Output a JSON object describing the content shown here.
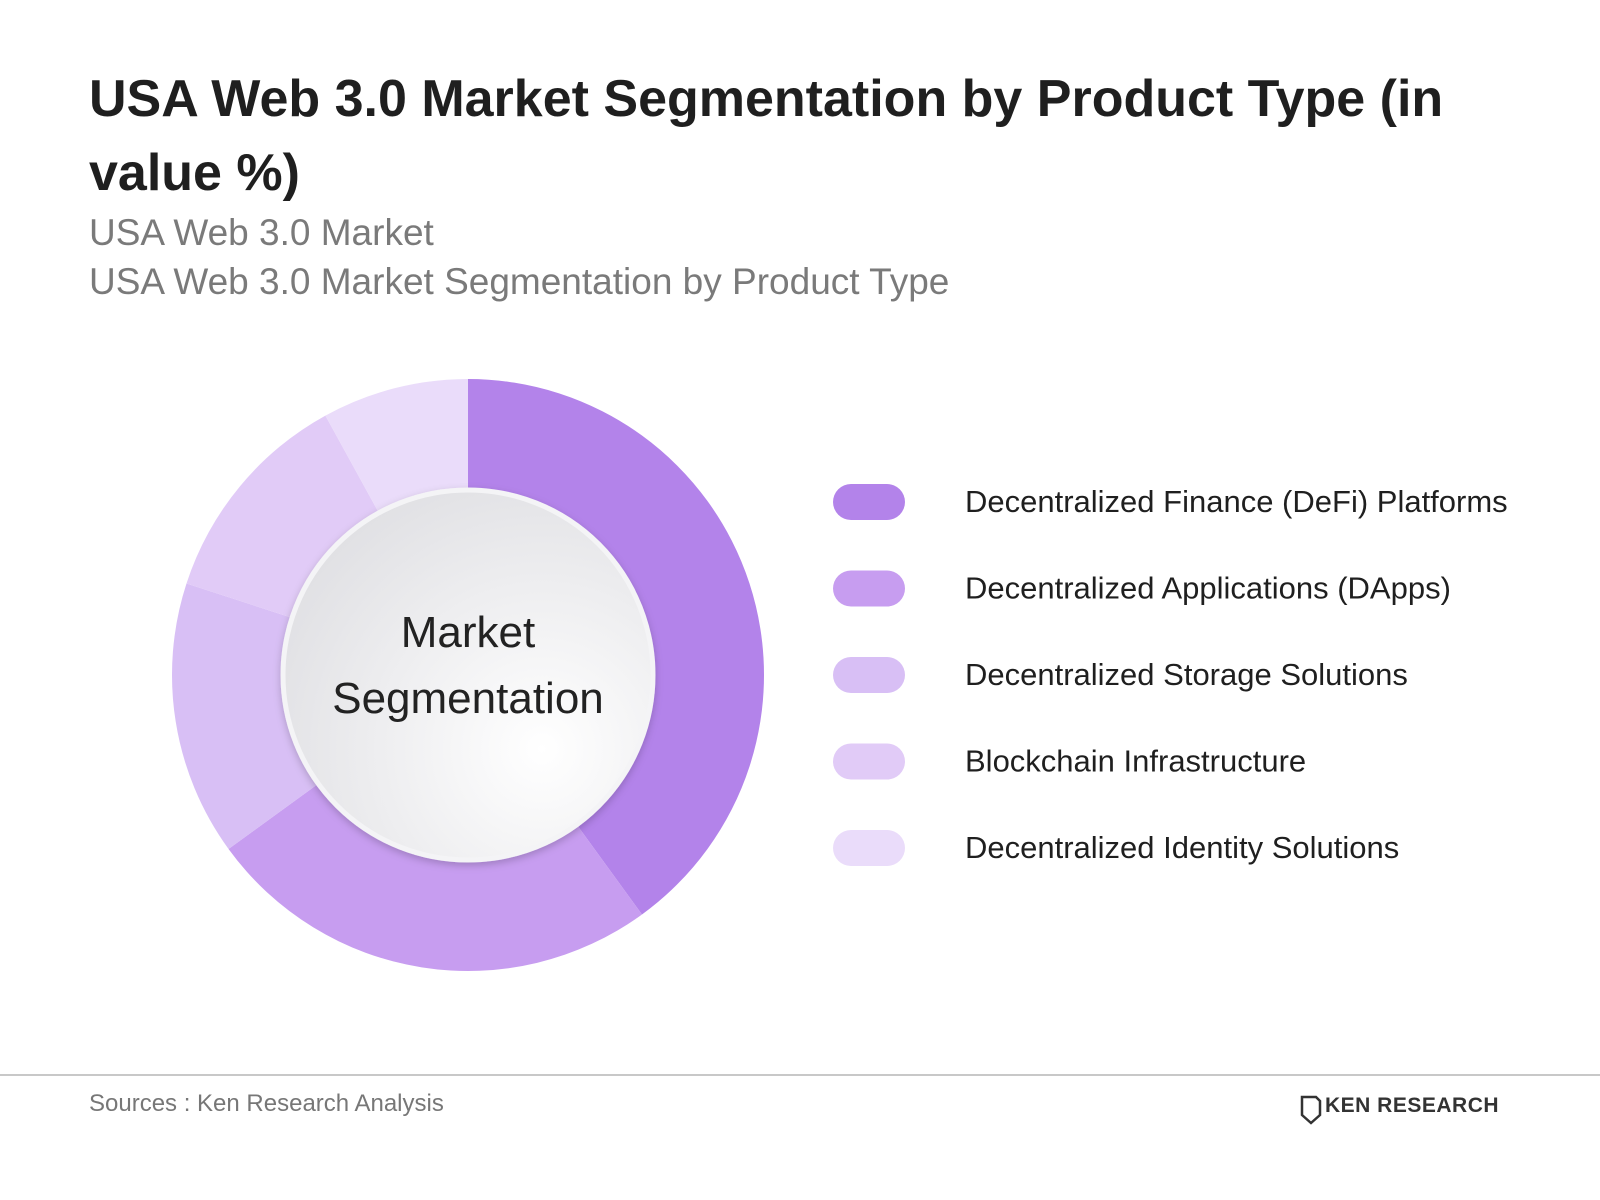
{
  "chart_data": {
    "type": "donut",
    "title": "USA Web 3.0 Market Segmentation by Product Type (in value %)",
    "subtitle": [
      "USA Web 3.0 Market",
      "USA Web 3.0 Market Segmentation by Product Type"
    ],
    "center_label": "Market Segmentation",
    "categories": [
      "Decentralized Finance (DeFi) Platforms",
      "Decentralized Applications (DApps)",
      "Decentralized Storage Solutions",
      "Blockchain Infrastructure",
      "Decentralized Identity Solutions"
    ],
    "values": [
      40,
      25,
      15,
      12,
      8
    ],
    "colors": [
      "#b383ea",
      "#c79df0",
      "#d8bff5",
      "#e1cbf7",
      "#eadcfa"
    ],
    "source": "Sources : Ken Research Analysis",
    "brand": "KEN RESEARCH"
  }
}
